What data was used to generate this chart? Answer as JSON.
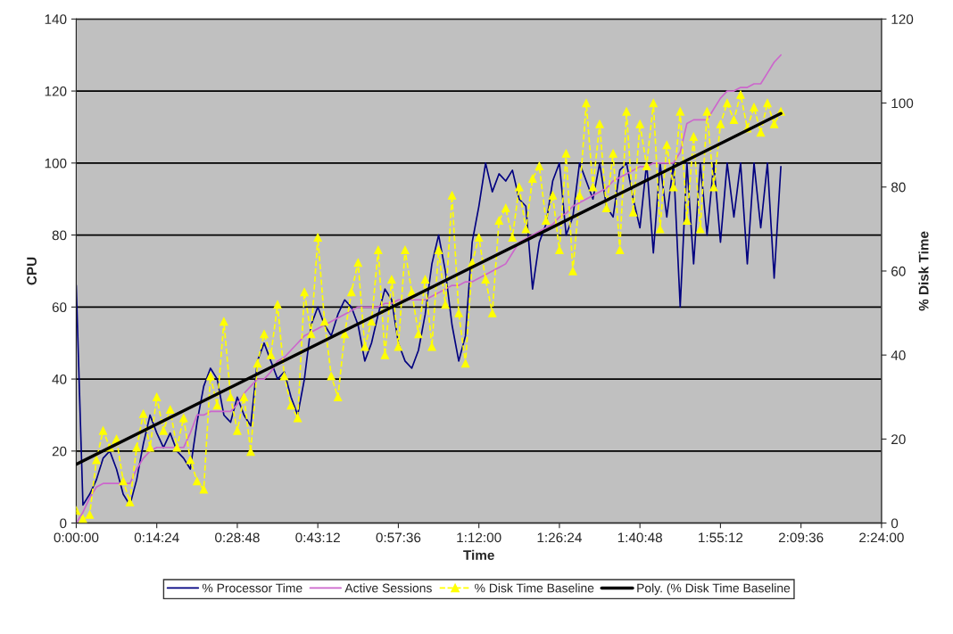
{
  "chart_data": {
    "type": "line",
    "xlabel": "Time",
    "ylabel": "CPU",
    "y2label": "% Disk Time",
    "x": [
      0,
      0.02,
      0.04,
      0.06,
      0.08,
      0.1,
      0.12,
      0.14,
      0.16,
      0.18,
      0.2,
      0.22,
      0.24,
      0.26,
      0.28,
      0.3,
      0.32,
      0.34,
      0.36,
      0.38,
      0.4,
      0.42,
      0.44,
      0.46,
      0.48,
      0.5,
      0.52,
      0.54,
      0.56,
      0.58,
      0.6,
      0.62,
      0.64,
      0.66,
      0.68,
      0.7,
      0.72,
      0.74,
      0.76,
      0.78,
      0.8,
      0.82,
      0.84,
      0.86,
      0.88,
      0.9,
      0.92,
      0.94,
      0.96,
      0.98,
      1.0,
      1.02,
      1.04,
      1.06,
      1.08,
      1.1,
      1.12,
      1.14,
      1.16,
      1.18,
      1.2,
      1.22,
      1.24,
      1.26,
      1.28,
      1.3,
      1.32,
      1.34,
      1.36,
      1.38,
      1.4,
      1.42,
      1.44,
      1.46,
      1.48,
      1.5,
      1.52,
      1.54,
      1.56,
      1.58,
      1.6,
      1.62,
      1.64,
      1.66,
      1.68,
      1.7,
      1.72,
      1.74,
      1.76,
      1.78,
      1.8,
      1.82,
      1.84,
      1.86,
      1.88,
      1.9,
      1.92,
      1.94,
      1.96,
      1.98,
      2.0,
      2.02,
      2.04,
      2.06,
      2.08,
      2.1
    ],
    "series": [
      {
        "name": "% Processor Time",
        "color": "#000080",
        "marker": "none",
        "line_style": "solid",
        "values": [
          66,
          5,
          8,
          12,
          18,
          20,
          15,
          8,
          5,
          12,
          22,
          30,
          25,
          21,
          25,
          20,
          18,
          15,
          28,
          38,
          43,
          40,
          30,
          28,
          35,
          30,
          27,
          45,
          50,
          45,
          40,
          42,
          35,
          30,
          40,
          55,
          60,
          55,
          52,
          58,
          62,
          60,
          55,
          45,
          50,
          58,
          65,
          62,
          50,
          45,
          43,
          48,
          58,
          72,
          80,
          70,
          55,
          45,
          52,
          78,
          88,
          100,
          92,
          97,
          95,
          98,
          90,
          88,
          65,
          78,
          83,
          95,
          100,
          80,
          85,
          100,
          95,
          90,
          100,
          88,
          85,
          98,
          100,
          90,
          82,
          100,
          75,
          100,
          85,
          100,
          60,
          100,
          72,
          100,
          80,
          100,
          78,
          100,
          85,
          100,
          72,
          100,
          82,
          100,
          68,
          99
        ]
      },
      {
        "name": "Active Sessions",
        "color": "#cc66cc",
        "marker": "none",
        "line_style": "solid",
        "values": [
          0,
          3,
          7,
          10,
          11,
          11,
          11,
          11,
          11,
          15,
          18,
          20,
          21,
          21,
          21,
          21,
          21,
          25,
          30,
          30,
          31,
          31,
          31,
          31,
          33,
          36,
          38,
          40,
          40,
          42,
          45,
          46,
          48,
          50,
          52,
          53,
          54,
          55,
          56,
          57,
          58,
          59,
          60,
          60,
          60,
          60,
          61,
          61,
          62,
          62,
          62,
          62,
          62,
          63,
          64,
          65,
          66,
          66,
          67,
          67,
          68,
          69,
          70,
          71,
          72,
          75,
          78,
          79,
          80,
          81,
          82,
          83,
          85,
          86,
          88,
          89,
          90,
          91,
          92,
          93,
          95,
          96,
          97,
          98,
          99,
          99,
          100,
          100,
          100,
          100,
          103,
          111,
          112,
          112,
          112,
          115,
          118,
          120,
          120,
          121,
          121,
          122,
          122,
          125,
          128,
          130
        ]
      },
      {
        "name": "% Disk Time Baseline",
        "color": "#ffff00",
        "axis": "y2",
        "marker": "triangle",
        "line_style": "dashed",
        "values": [
          3,
          1,
          2,
          15,
          22,
          18,
          20,
          10,
          5,
          18,
          26,
          18,
          30,
          22,
          27,
          18,
          25,
          15,
          10,
          8,
          35,
          28,
          48,
          30,
          22,
          30,
          17,
          38,
          45,
          40,
          52,
          35,
          28,
          25,
          55,
          45,
          68,
          48,
          35,
          30,
          45,
          55,
          62,
          42,
          48,
          65,
          40,
          58,
          42,
          65,
          55,
          45,
          58,
          42,
          65,
          52,
          78,
          50,
          38,
          62,
          68,
          58,
          50,
          72,
          75,
          68,
          80,
          70,
          82,
          85,
          72,
          78,
          65,
          88,
          60,
          78,
          100,
          80,
          95,
          75,
          88,
          65,
          98,
          74,
          95,
          85,
          100,
          70,
          90,
          80,
          98,
          72,
          92,
          70,
          98,
          80,
          95,
          100,
          96,
          102,
          94,
          99,
          93,
          100,
          95,
          98
        ]
      },
      {
        "name": "Poly. (% Disk Time Baseline",
        "color": "#000000",
        "axis": "y2",
        "marker": "none",
        "line_style": "solid",
        "x": [
          0,
          2.1
        ],
        "values": [
          14,
          97.5
        ]
      }
    ],
    "xlim": [
      0,
      2.4
    ],
    "xticks": [
      {
        "value": 0,
        "label": "0:00:00"
      },
      {
        "value": 0.24,
        "label": "0:14:24"
      },
      {
        "value": 0.48,
        "label": "0:28:48"
      },
      {
        "value": 0.72,
        "label": "0:43:12"
      },
      {
        "value": 0.96,
        "label": "0:57:36"
      },
      {
        "value": 1.2,
        "label": "1:12:00"
      },
      {
        "value": 1.44,
        "label": "1:26:24"
      },
      {
        "value": 1.68,
        "label": "1:40:48"
      },
      {
        "value": 1.92,
        "label": "1:55:12"
      },
      {
        "value": 2.16,
        "label": "2:09:36"
      },
      {
        "value": 2.4,
        "label": "2:24:00"
      }
    ],
    "ylim": [
      0,
      140
    ],
    "yticks": [
      0,
      20,
      40,
      60,
      80,
      100,
      120,
      140
    ],
    "y2lim": [
      0,
      120
    ],
    "y2ticks": [
      0,
      20,
      40,
      60,
      80,
      100,
      120
    ],
    "grid": "y",
    "legend": "bottom"
  }
}
